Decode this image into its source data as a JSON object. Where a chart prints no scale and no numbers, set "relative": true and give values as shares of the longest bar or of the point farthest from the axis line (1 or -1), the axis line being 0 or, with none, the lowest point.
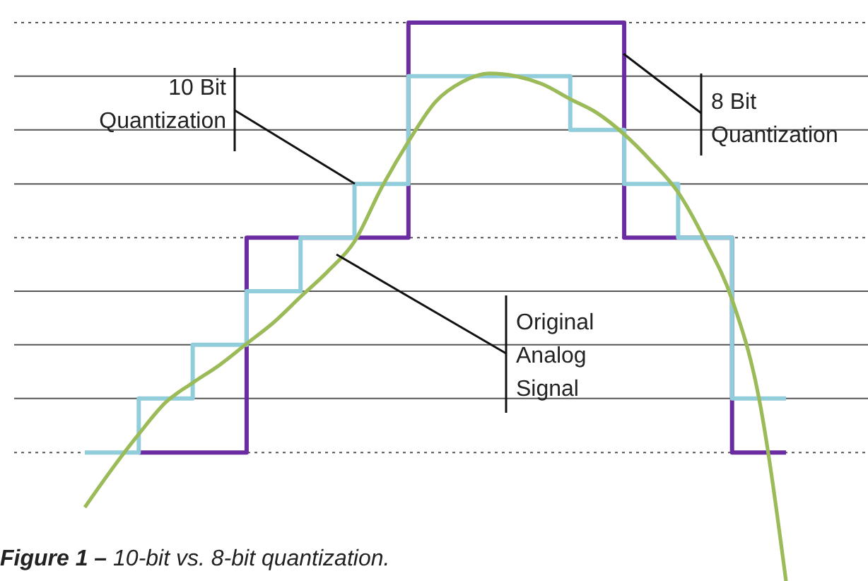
{
  "chart_data": {
    "type": "step",
    "relative": true,
    "categories": [
      null,
      null,
      null,
      null,
      null,
      null,
      null,
      null,
      null,
      null,
      null,
      null,
      null,
      null,
      null,
      null,
      null,
      null,
      null,
      null,
      null,
      null,
      null,
      null,
      null,
      null,
      null
    ],
    "series": [
      {
        "color": "#6a2ca0",
        "values": [
          null,
          null,
          0.23,
          0.23,
          0.23,
          0.23,
          0.615,
          0.615,
          0.615,
          0.615,
          0.615,
          0.615,
          1,
          1,
          1,
          1,
          1,
          1,
          1,
          1,
          0.615,
          0.615,
          0.615,
          0.615,
          0.23,
          0.23,
          0.23
        ]
      },
      {
        "color": "#92cddc",
        "values": [
          0.23,
          0.23,
          0.327,
          0.327,
          0.423,
          0.423,
          0.519,
          0.519,
          0.615,
          0.615,
          0.711,
          0.711,
          0.904,
          0.904,
          0.904,
          0.904,
          0.904,
          0.904,
          0.808,
          0.808,
          0.711,
          0.711,
          0.615,
          0.615,
          0.327,
          0.327,
          0.327
        ]
      },
      {
        "color": "#9bbb59",
        "type": "line",
        "values": [
          0.132,
          0.2,
          0.263,
          0.32,
          0.355,
          0.387,
          0.425,
          0.463,
          0.509,
          0.554,
          0.608,
          0.704,
          0.787,
          0.858,
          0.894,
          0.909,
          0.904,
          0.889,
          0.863,
          0.838,
          0.8,
          0.752,
          0.696,
          0.61,
          0.504,
          0.327,
          0
        ]
      }
    ],
    "ref_lines": [
      {
        "axis": "y",
        "value": 1,
        "line_style": "dotted",
        "color": "#555555"
      },
      {
        "axis": "y",
        "value": 0.904,
        "line_style": "solid",
        "color": "#555555"
      },
      {
        "axis": "y",
        "value": 0.808,
        "line_style": "solid",
        "color": "#555555"
      },
      {
        "axis": "y",
        "value": 0.711,
        "line_style": "solid",
        "color": "#555555"
      },
      {
        "axis": "y",
        "value": 0.615,
        "line_style": "dotted",
        "color": "#555555"
      },
      {
        "axis": "y",
        "value": 0.519,
        "line_style": "solid",
        "color": "#555555"
      },
      {
        "axis": "y",
        "value": 0.423,
        "line_style": "solid",
        "color": "#555555"
      },
      {
        "axis": "y",
        "value": 0.327,
        "line_style": "solid",
        "color": "#555555"
      },
      {
        "axis": "y",
        "value": 0.23,
        "line_style": "dotted",
        "color": "#555555"
      }
    ],
    "annotations": [
      "8 Bit\nQuantization",
      "10 Bit\nQuantization",
      "Original\nAnalog\nSignal",
      "Figure 1 – 10-bit vs. 8-bit quantization."
    ]
  }
}
